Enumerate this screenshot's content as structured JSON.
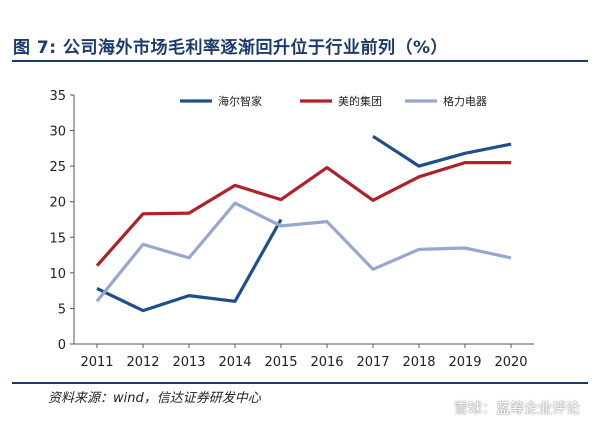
{
  "figure": {
    "title": "图 7:  公司海外市场毛利率逐渐回升位于行业前列（%）",
    "source": "资料来源：wind，信达证券研发中心",
    "watermark": "雪球：蓝筹企业评论"
  },
  "chart_data": {
    "type": "line",
    "x": [
      2011,
      2012,
      2013,
      2014,
      2015,
      2016,
      2017,
      2018,
      2019,
      2020
    ],
    "ylim": [
      0,
      35
    ],
    "yticks": [
      0,
      5,
      10,
      15,
      20,
      25,
      30,
      35
    ],
    "grid": false,
    "legend_position": "top",
    "series": [
      {
        "name": "海尔智家",
        "color": "#1f4e8c",
        "values": [
          7.8,
          4.7,
          6.8,
          6.0,
          17.5,
          null,
          29.2,
          25.0,
          26.8,
          28.1
        ],
        "segments": [
          [
            0,
            4
          ],
          [
            6,
            9
          ]
        ]
      },
      {
        "name": "美的集团",
        "color": "#b0202a",
        "values": [
          11.0,
          18.3,
          18.4,
          22.3,
          20.3,
          24.8,
          20.2,
          23.5,
          25.5,
          25.5
        ],
        "segments": [
          [
            0,
            9
          ]
        ]
      },
      {
        "name": "格力电器",
        "color": "#97a7cf",
        "values": [
          6.0,
          14.0,
          12.1,
          19.8,
          16.6,
          17.2,
          10.5,
          13.3,
          13.5,
          12.1
        ],
        "segments": [
          [
            0,
            9
          ]
        ]
      }
    ]
  }
}
